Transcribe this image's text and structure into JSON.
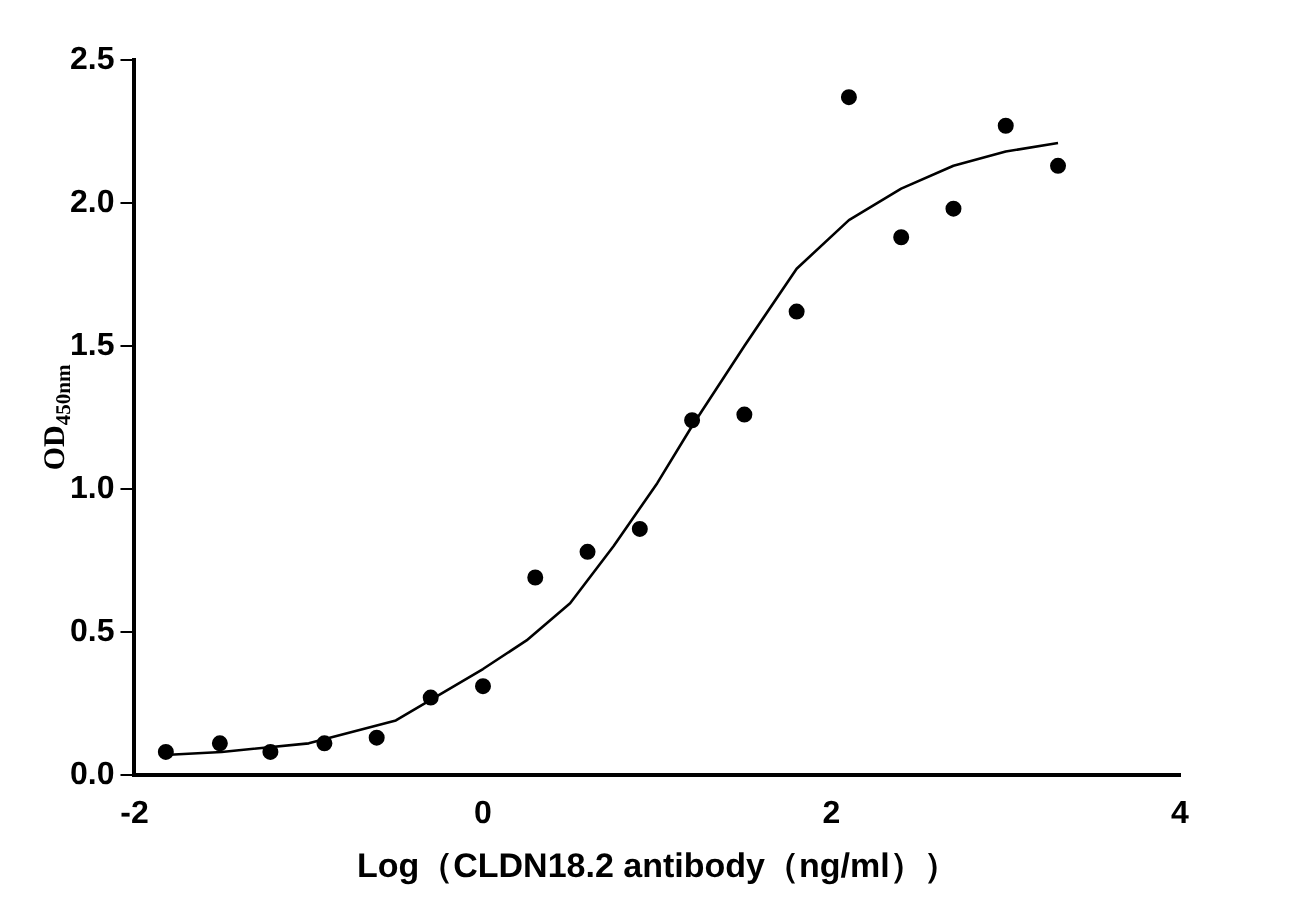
{
  "chart_data": {
    "type": "scatter",
    "xlabel": "Log（CLDN18.2 antibody（ng/ml））",
    "ylabel": "OD$_{450nm}$",
    "xlim": [
      -2,
      4
    ],
    "xticks": [
      -2,
      0,
      2,
      4
    ],
    "ylim": [
      0,
      2.5
    ],
    "yticks": [
      {
        "value": 0,
        "label": "0.0"
      },
      {
        "value": 0.5,
        "label": "0.5"
      },
      {
        "value": 1,
        "label": "1.0"
      },
      {
        "value": 1.5,
        "label": "1.5"
      },
      {
        "value": 2,
        "label": "2.0"
      },
      {
        "value": 2.5,
        "label": "2.5"
      }
    ],
    "grid": false,
    "legend": false,
    "series": [
      {
        "type": "scatter",
        "color": "#000000",
        "marker": "circle",
        "x": [
          -1.82,
          -1.51,
          -1.22,
          -0.91,
          -0.61,
          -0.3,
          0,
          0.3,
          0.6,
          0.9,
          1.2,
          1.5,
          1.8,
          2.1,
          2.4,
          2.7,
          3.0,
          3.3
        ],
        "values": [
          0.08,
          0.11,
          0.08,
          0.11,
          0.13,
          0.27,
          0.31,
          0.69,
          0.78,
          0.86,
          1.24,
          1.26,
          1.62,
          2.37,
          1.88,
          1.98,
          2.27,
          2.13
        ]
      },
      {
        "type": "line",
        "color": "#000000",
        "marker": "none",
        "line_style": "solid",
        "x": [
          -1.8,
          -1.5,
          -1,
          -0.5,
          0,
          0.25,
          0.5,
          0.75,
          1,
          1.2,
          1.5,
          1.8,
          2.1,
          2.4,
          2.7,
          3.0,
          3.3
        ],
        "values": [
          0.07,
          0.08,
          0.11,
          0.19,
          0.37,
          0.47,
          0.6,
          0.8,
          1.02,
          1.22,
          1.5,
          1.77,
          1.94,
          2.05,
          2.13,
          2.18,
          2.21
        ]
      }
    ]
  }
}
